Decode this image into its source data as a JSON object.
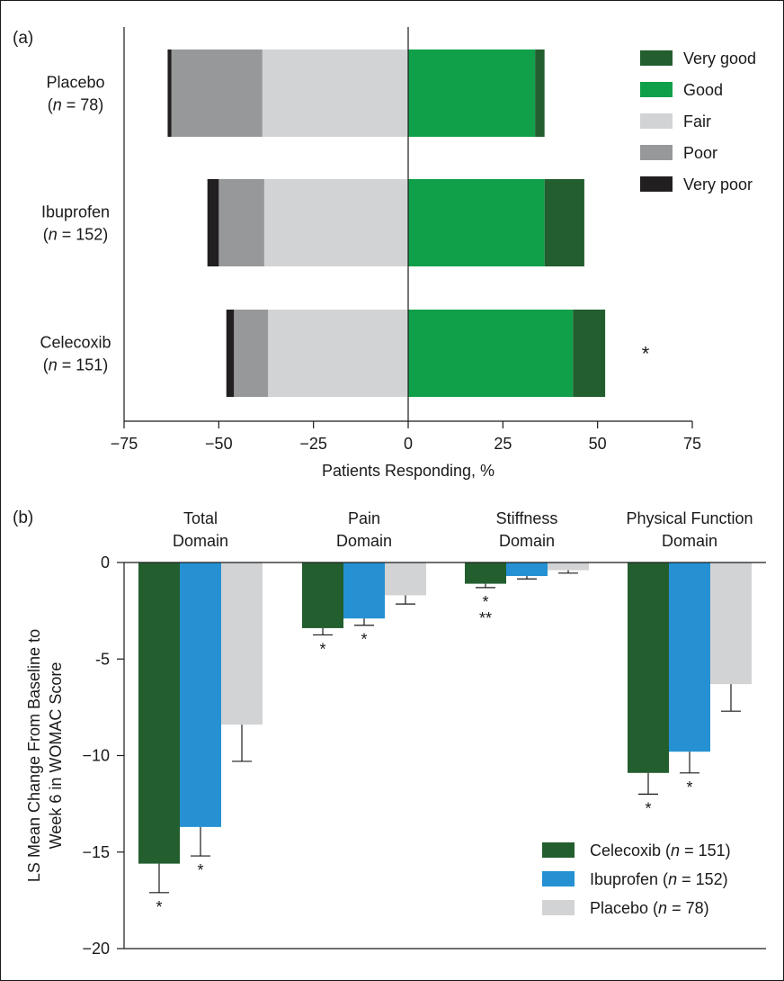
{
  "chart_data": [
    {
      "panel_label": "(a)",
      "type": "bar",
      "orientation": "horizontal",
      "stacked": true,
      "diverging": true,
      "xlabel": "Patients Responding, %",
      "xlim": [
        -75,
        75
      ],
      "xticks": [
        "−75",
        "−50",
        "−25",
        "0",
        "25",
        "50",
        "75"
      ],
      "xtick_values": [
        -75,
        -50,
        -25,
        0,
        25,
        50,
        75
      ],
      "legend_position": "top-right",
      "groups": [
        {
          "name": "Placebo",
          "n_label": "78",
          "very_good": 2.5,
          "good": 33.5,
          "fair": 38.5,
          "poor": 24.0,
          "very_poor": 1.0,
          "annotation": ""
        },
        {
          "name": "Ibuprofen",
          "n_label": "152",
          "very_good": 10.5,
          "good": 36.0,
          "fair": 38.0,
          "poor": 12.0,
          "very_poor": 3.0,
          "annotation": ""
        },
        {
          "name": "Celecoxib",
          "n_label": "151",
          "very_good": 8.5,
          "good": 43.5,
          "fair": 37.0,
          "poor": 9.0,
          "very_poor": 2.0,
          "annotation": "*"
        }
      ],
      "series": [
        {
          "key": "very_good",
          "name": "Very good",
          "color": "#235e2f",
          "side": "positive"
        },
        {
          "key": "good",
          "name": "Good",
          "color": "#11a04a",
          "side": "positive"
        },
        {
          "key": "fair",
          "name": "Fair",
          "color": "#d2d3d4",
          "side": "negative"
        },
        {
          "key": "poor",
          "name": "Poor",
          "color": "#97989a",
          "side": "negative"
        },
        {
          "key": "very_poor",
          "name": "Very poor",
          "color": "#221f20",
          "side": "negative"
        }
      ]
    },
    {
      "panel_label": "(b)",
      "type": "bar",
      "ylabel_line1": "LS Mean Change From Baseline to",
      "ylabel_line2": "Week 6 in WOMAC Score",
      "ylim": [
        -20,
        0
      ],
      "yticks": [
        "0",
        "-5",
        "−10",
        "−15",
        "−20"
      ],
      "ytick_values": [
        0,
        -5,
        -10,
        -15,
        -20
      ],
      "legend_position": "bottom-right",
      "categories": [
        {
          "line1": "Total",
          "line2": "Domain"
        },
        {
          "line1": "Pain",
          "line2": "Domain"
        },
        {
          "line1": "Stiffness",
          "line2": "Domain"
        },
        {
          "line1": "Physical Function",
          "line2": "Domain"
        }
      ],
      "series": [
        {
          "name": "Celecoxib",
          "n_label": "151",
          "color": "#235e2f",
          "values": [
            -15.6,
            -3.4,
            -1.1,
            -10.9
          ],
          "errors": [
            1.5,
            0.35,
            0.2,
            1.1
          ],
          "annotations": [
            "*",
            "*",
            "*\n**",
            "*"
          ]
        },
        {
          "name": "Ibuprofen",
          "n_label": "152",
          "color": "#2591d3",
          "values": [
            -13.7,
            -2.9,
            -0.7,
            -9.8
          ],
          "errors": [
            1.5,
            0.35,
            0.15,
            1.1
          ],
          "annotations": [
            "*",
            "*",
            "",
            "*"
          ]
        },
        {
          "name": "Placebo",
          "n_label": "78",
          "color": "#d2d3d4",
          "values": [
            -8.4,
            -1.7,
            -0.4,
            -6.3
          ],
          "errors": [
            1.9,
            0.45,
            0.15,
            1.4
          ],
          "annotations": [
            "",
            "",
            "",
            ""
          ]
        }
      ]
    }
  ]
}
